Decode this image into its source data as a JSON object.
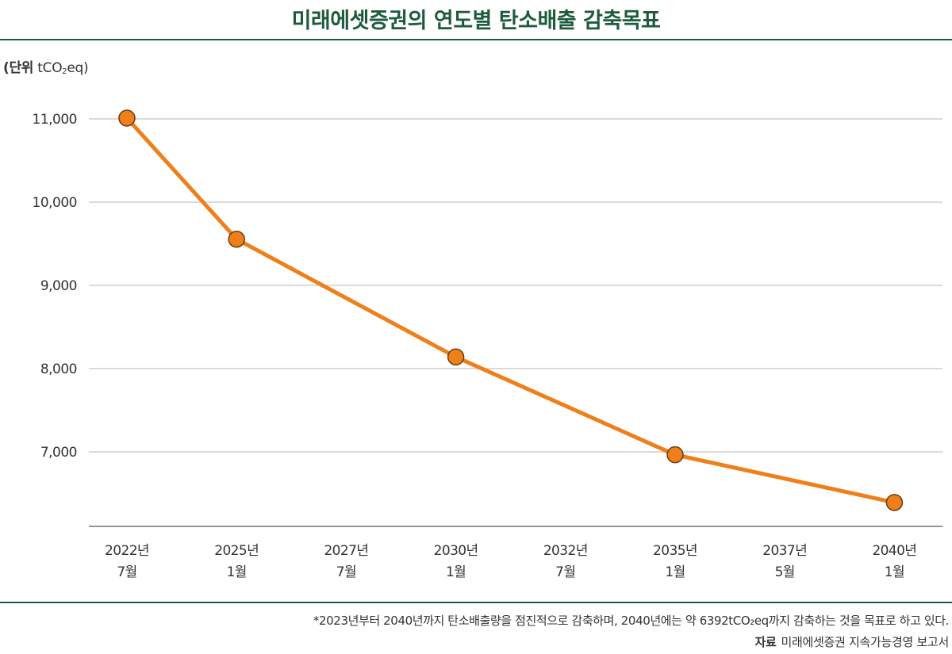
{
  "colors": {
    "line": "#ef7f1a",
    "marker_fill": "#ef7f1a",
    "marker_stroke": "#6b3a0f",
    "rule": "#1e5b3c",
    "title": "#1e5b3c",
    "grid": "#b5b5b5"
  },
  "chart_data": {
    "type": "line",
    "title": "미래에셋증권의 연도별 탄소배출 감축목표",
    "unit_label": "(단위",
    "unit_value_prefix": "tCO",
    "unit_sub": "2",
    "unit_value_suffix": "eq)",
    "ylabel": "tCO2eq",
    "xlabel": "",
    "ylim": [
      6100,
      11400
    ],
    "y_ticks": [
      {
        "value": 11000,
        "label": "11,000"
      },
      {
        "value": 10000,
        "label": "10,000"
      },
      {
        "value": 9000,
        "label": "9,000"
      },
      {
        "value": 8000,
        "label": "8,000"
      },
      {
        "value": 7000,
        "label": "7,000"
      }
    ],
    "categories": [
      {
        "line1": "2022년",
        "line2": "7월"
      },
      {
        "line1": "2025년",
        "line2": "1월"
      },
      {
        "line1": "2027년",
        "line2": "7월"
      },
      {
        "line1": "2030년",
        "line2": "1월"
      },
      {
        "line1": "2032년",
        "line2": "7월"
      },
      {
        "line1": "2035년",
        "line2": "1월"
      },
      {
        "line1": "2037년",
        "line2": "5월"
      },
      {
        "line1": "2040년",
        "line2": "1월"
      }
    ],
    "series": [
      {
        "name": "탄소배출 감축목표",
        "points": [
          {
            "x": 0,
            "y": 11010
          },
          {
            "x": 1,
            "y": 9555
          },
          {
            "x": 3,
            "y": 8140
          },
          {
            "x": 5,
            "y": 6965
          },
          {
            "x": 7,
            "y": 6392
          }
        ]
      }
    ],
    "grid": true,
    "legend": "none"
  },
  "footnote": "*2023년부터 2040년까지 탄소배출량을 점진적으로 감축하며, 2040년에는 약 6392tCO₂eq까지 감축하는 것을 목표로 하고 있다.",
  "source": {
    "label": "자료",
    "text": "미래에셋증권 지속가능경영 보고서"
  }
}
